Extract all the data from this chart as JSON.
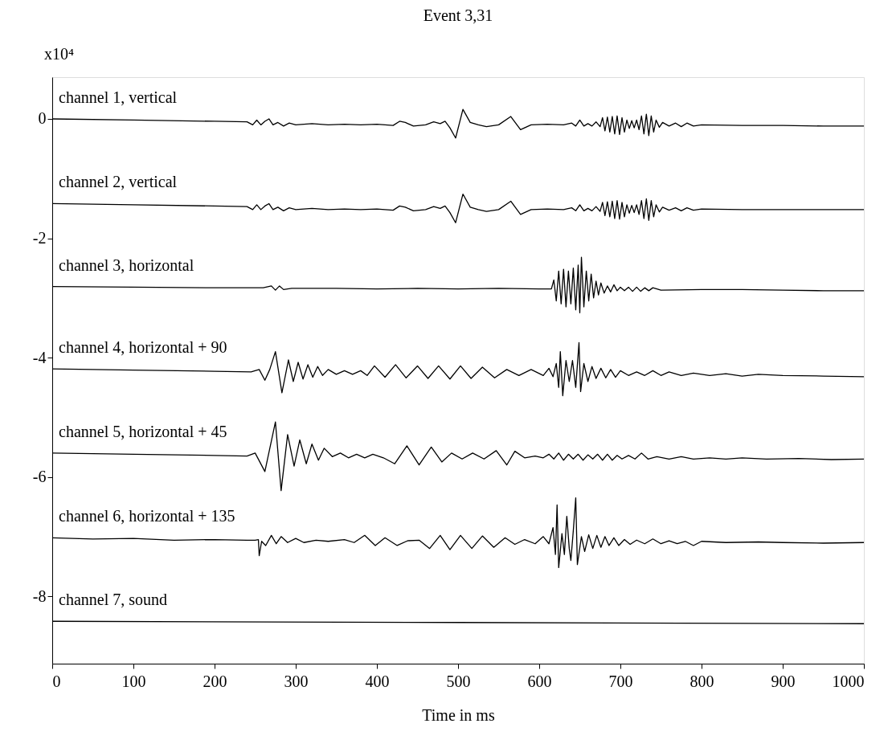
{
  "chart_data": {
    "type": "line",
    "title": "Event 3,31",
    "xlabel": "Time in ms",
    "annotations": [
      "x10⁴"
    ],
    "xlim": [
      0,
      1000
    ],
    "xticks": [
      0,
      100,
      200,
      300,
      400,
      500,
      600,
      700,
      800,
      900,
      1000
    ],
    "ylim": [
      -9.13,
      0.7
    ],
    "yticks": [
      0,
      -2,
      -4,
      -6,
      -8
    ],
    "grid": false,
    "legend": false,
    "series": [
      {
        "name": "channel 1, vertical",
        "color": "#000000",
        "x": [
          0,
          100,
          200,
          240,
          247,
          252,
          257,
          262,
          267,
          272,
          278,
          285,
          292,
          300,
          320,
          340,
          360,
          380,
          400,
          420,
          428,
          435,
          445,
          460,
          470,
          478,
          484,
          490,
          497,
          506,
          515,
          525,
          535,
          550,
          565,
          577,
          590,
          610,
          630,
          640,
          645,
          650,
          655,
          660,
          665,
          670,
          675,
          678,
          681,
          684,
          687,
          690,
          693,
          696,
          699,
          702,
          705,
          708,
          711,
          714,
          717,
          720,
          723,
          726,
          729,
          732,
          735,
          738,
          741,
          744,
          748,
          752,
          760,
          768,
          775,
          782,
          790,
          800,
          850,
          900,
          950,
          1000
        ],
        "values": [
          0,
          -0.02,
          -0.04,
          -0.05,
          -0.1,
          -0.02,
          -0.1,
          -0.04,
          0.0,
          -0.1,
          -0.06,
          -0.12,
          -0.07,
          -0.1,
          -0.08,
          -0.1,
          -0.09,
          -0.1,
          -0.09,
          -0.11,
          -0.04,
          -0.06,
          -0.12,
          -0.1,
          -0.05,
          -0.08,
          -0.04,
          -0.15,
          -0.32,
          0.16,
          -0.06,
          -0.1,
          -0.13,
          -0.1,
          0.04,
          -0.18,
          -0.1,
          -0.09,
          -0.1,
          -0.07,
          -0.12,
          -0.02,
          -0.12,
          -0.08,
          -0.12,
          -0.05,
          -0.13,
          0.02,
          -0.2,
          0.03,
          -0.22,
          0.04,
          -0.25,
          0.05,
          -0.26,
          0.02,
          -0.22,
          -0.02,
          -0.16,
          -0.03,
          -0.15,
          -0.02,
          -0.18,
          0.05,
          -0.25,
          0.08,
          -0.28,
          0.05,
          -0.22,
          -0.02,
          -0.14,
          -0.06,
          -0.12,
          -0.07,
          -0.13,
          -0.07,
          -0.12,
          -0.1,
          -0.11,
          -0.11,
          -0.12,
          -0.12
        ]
      },
      {
        "name": "channel 2, vertical",
        "color": "#000000",
        "x": [
          0,
          100,
          200,
          240,
          247,
          252,
          257,
          262,
          267,
          272,
          278,
          285,
          292,
          300,
          320,
          340,
          360,
          380,
          400,
          420,
          428,
          435,
          445,
          460,
          470,
          478,
          484,
          490,
          497,
          506,
          515,
          525,
          535,
          550,
          565,
          577,
          590,
          610,
          630,
          640,
          645,
          650,
          655,
          660,
          665,
          670,
          675,
          678,
          681,
          684,
          687,
          690,
          693,
          696,
          699,
          702,
          705,
          708,
          711,
          714,
          717,
          720,
          723,
          726,
          729,
          732,
          735,
          738,
          741,
          744,
          748,
          752,
          760,
          768,
          775,
          782,
          790,
          800,
          850,
          900,
          950,
          1000
        ],
        "values": [
          -1.42,
          -1.44,
          -1.46,
          -1.47,
          -1.52,
          -1.44,
          -1.52,
          -1.46,
          -1.42,
          -1.52,
          -1.48,
          -1.54,
          -1.49,
          -1.52,
          -1.5,
          -1.52,
          -1.51,
          -1.52,
          -1.51,
          -1.53,
          -1.46,
          -1.48,
          -1.54,
          -1.52,
          -1.47,
          -1.5,
          -1.46,
          -1.57,
          -1.74,
          -1.26,
          -1.48,
          -1.52,
          -1.55,
          -1.52,
          -1.38,
          -1.6,
          -1.52,
          -1.51,
          -1.52,
          -1.49,
          -1.54,
          -1.44,
          -1.54,
          -1.5,
          -1.54,
          -1.47,
          -1.55,
          -1.4,
          -1.62,
          -1.39,
          -1.64,
          -1.38,
          -1.67,
          -1.37,
          -1.68,
          -1.4,
          -1.64,
          -1.44,
          -1.58,
          -1.45,
          -1.57,
          -1.44,
          -1.6,
          -1.37,
          -1.67,
          -1.34,
          -1.7,
          -1.37,
          -1.64,
          -1.44,
          -1.56,
          -1.48,
          -1.53,
          -1.49,
          -1.54,
          -1.49,
          -1.53,
          -1.51,
          -1.52,
          -1.52,
          -1.52,
          -1.52
        ]
      },
      {
        "name": "channel 3, horizontal",
        "color": "#000000",
        "x": [
          0,
          100,
          200,
          260,
          270,
          275,
          280,
          285,
          295,
          350,
          400,
          450,
          500,
          550,
          600,
          615,
          618,
          621,
          624,
          627,
          630,
          633,
          636,
          639,
          642,
          645,
          648,
          650,
          652,
          655,
          658,
          661,
          664,
          667,
          670,
          673,
          676,
          680,
          684,
          688,
          692,
          696,
          700,
          705,
          710,
          715,
          720,
          725,
          730,
          735,
          740,
          750,
          800,
          850,
          900,
          950,
          1000
        ],
        "values": [
          -2.81,
          -2.82,
          -2.83,
          -2.83,
          -2.8,
          -2.87,
          -2.8,
          -2.86,
          -2.84,
          -2.84,
          -2.85,
          -2.84,
          -2.85,
          -2.84,
          -2.85,
          -2.85,
          -2.7,
          -3.05,
          -2.55,
          -3.1,
          -2.52,
          -3.15,
          -2.55,
          -3.1,
          -2.5,
          -3.2,
          -2.45,
          -3.25,
          -2.32,
          -3.15,
          -2.55,
          -3.05,
          -2.6,
          -3.0,
          -2.72,
          -2.95,
          -2.75,
          -2.92,
          -2.8,
          -2.9,
          -2.78,
          -2.88,
          -2.82,
          -2.88,
          -2.82,
          -2.89,
          -2.82,
          -2.89,
          -2.83,
          -2.88,
          -2.83,
          -2.87,
          -2.86,
          -2.86,
          -2.87,
          -2.88,
          -2.88
        ]
      },
      {
        "name": "channel 4, horizontal + 90",
        "color": "#000000",
        "x": [
          0,
          100,
          200,
          245,
          255,
          262,
          268,
          275,
          283,
          291,
          297,
          303,
          309,
          315,
          321,
          327,
          333,
          340,
          350,
          360,
          370,
          380,
          388,
          397,
          410,
          423,
          436,
          450,
          463,
          476,
          490,
          503,
          516,
          530,
          545,
          560,
          575,
          590,
          605,
          612,
          617,
          621,
          624,
          626,
          629,
          633,
          637,
          641,
          645,
          649,
          651,
          655,
          660,
          665,
          670,
          676,
          682,
          688,
          694,
          700,
          710,
          720,
          730,
          740,
          750,
          760,
          775,
          790,
          810,
          830,
          850,
          870,
          900,
          950,
          1000
        ],
        "values": [
          -4.19,
          -4.21,
          -4.23,
          -4.24,
          -4.2,
          -4.38,
          -4.2,
          -3.9,
          -4.59,
          -4.04,
          -4.4,
          -4.08,
          -4.36,
          -4.12,
          -4.33,
          -4.15,
          -4.3,
          -4.2,
          -4.28,
          -4.22,
          -4.28,
          -4.22,
          -4.3,
          -4.14,
          -4.33,
          -4.12,
          -4.34,
          -4.14,
          -4.35,
          -4.14,
          -4.36,
          -4.14,
          -4.35,
          -4.16,
          -4.34,
          -4.2,
          -4.3,
          -4.2,
          -4.3,
          -4.18,
          -4.32,
          -4.1,
          -4.5,
          -3.9,
          -4.64,
          -4.05,
          -4.4,
          -4.05,
          -4.5,
          -3.75,
          -4.57,
          -4.1,
          -4.4,
          -4.15,
          -4.35,
          -4.18,
          -4.34,
          -4.2,
          -4.33,
          -4.22,
          -4.3,
          -4.24,
          -4.3,
          -4.22,
          -4.3,
          -4.24,
          -4.3,
          -4.26,
          -4.3,
          -4.27,
          -4.31,
          -4.28,
          -4.3,
          -4.31,
          -4.32
        ]
      },
      {
        "name": "channel 5, horizontal + 45",
        "color": "#000000",
        "x": [
          0,
          100,
          200,
          240,
          250,
          262,
          275,
          282,
          290,
          298,
          305,
          313,
          320,
          328,
          335,
          345,
          355,
          365,
          375,
          385,
          395,
          408,
          422,
          437,
          452,
          467,
          480,
          492,
          505,
          518,
          532,
          547,
          560,
          570,
          582,
          595,
          605,
          612,
          618,
          624,
          630,
          636,
          642,
          648,
          654,
          660,
          666,
          672,
          678,
          684,
          690,
          696,
          702,
          710,
          718,
          726,
          734,
          745,
          760,
          775,
          790,
          810,
          830,
          850,
          880,
          920,
          960,
          1000
        ],
        "values": [
          -5.6,
          -5.62,
          -5.64,
          -5.65,
          -5.6,
          -5.91,
          -5.08,
          -6.23,
          -5.29,
          -5.82,
          -5.38,
          -5.78,
          -5.45,
          -5.72,
          -5.52,
          -5.66,
          -5.6,
          -5.68,
          -5.62,
          -5.68,
          -5.62,
          -5.68,
          -5.78,
          -5.48,
          -5.8,
          -5.5,
          -5.75,
          -5.6,
          -5.7,
          -5.6,
          -5.7,
          -5.56,
          -5.8,
          -5.57,
          -5.68,
          -5.65,
          -5.68,
          -5.62,
          -5.7,
          -5.6,
          -5.72,
          -5.62,
          -5.7,
          -5.62,
          -5.72,
          -5.63,
          -5.7,
          -5.62,
          -5.72,
          -5.62,
          -5.72,
          -5.64,
          -5.7,
          -5.64,
          -5.7,
          -5.6,
          -5.7,
          -5.66,
          -5.7,
          -5.66,
          -5.7,
          -5.68,
          -5.7,
          -5.68,
          -5.7,
          -5.69,
          -5.71,
          -5.7
        ]
      },
      {
        "name": "channel 6, horizontal + 135",
        "color": "#000000",
        "x": [
          0,
          50,
          100,
          150,
          200,
          240,
          250,
          254,
          255,
          258,
          263,
          270,
          276,
          282,
          290,
          300,
          310,
          325,
          340,
          360,
          372,
          385,
          398,
          410,
          425,
          438,
          452,
          465,
          478,
          490,
          503,
          517,
          530,
          544,
          558,
          570,
          582,
          595,
          605,
          612,
          617,
          620,
          622,
          624,
          628,
          631,
          634,
          637,
          639,
          642,
          645,
          647,
          652,
          656,
          661,
          666,
          671,
          676,
          681,
          686,
          692,
          698,
          705,
          712,
          720,
          730,
          740,
          750,
          760,
          770,
          780,
          790,
          800,
          830,
          870,
          900,
          950,
          1000
        ],
        "values": [
          -7.02,
          -7.04,
          -7.03,
          -7.06,
          -7.05,
          -7.06,
          -7.06,
          -7.05,
          -7.32,
          -7.08,
          -7.15,
          -6.98,
          -7.12,
          -7.0,
          -7.1,
          -7.03,
          -7.1,
          -7.06,
          -7.08,
          -7.05,
          -7.1,
          -6.98,
          -7.15,
          -7.02,
          -7.15,
          -7.07,
          -7.06,
          -7.2,
          -6.98,
          -7.22,
          -6.98,
          -7.2,
          -6.99,
          -7.18,
          -7.02,
          -7.13,
          -7.05,
          -7.12,
          -7.0,
          -7.12,
          -6.85,
          -7.3,
          -6.47,
          -7.52,
          -6.95,
          -7.3,
          -6.66,
          -7.2,
          -7.4,
          -6.9,
          -6.35,
          -7.47,
          -7.0,
          -7.25,
          -6.97,
          -7.2,
          -6.98,
          -7.18,
          -7.0,
          -7.15,
          -7.02,
          -7.15,
          -7.05,
          -7.13,
          -7.06,
          -7.12,
          -7.04,
          -7.12,
          -7.07,
          -7.12,
          -7.08,
          -7.15,
          -7.08,
          -7.1,
          -7.09,
          -7.1,
          -7.11,
          -7.1
        ]
      },
      {
        "name": "channel 7, sound",
        "color": "#000000",
        "x": [
          0,
          500,
          1000
        ],
        "values": [
          -8.42,
          -8.44,
          -8.46
        ]
      }
    ]
  }
}
